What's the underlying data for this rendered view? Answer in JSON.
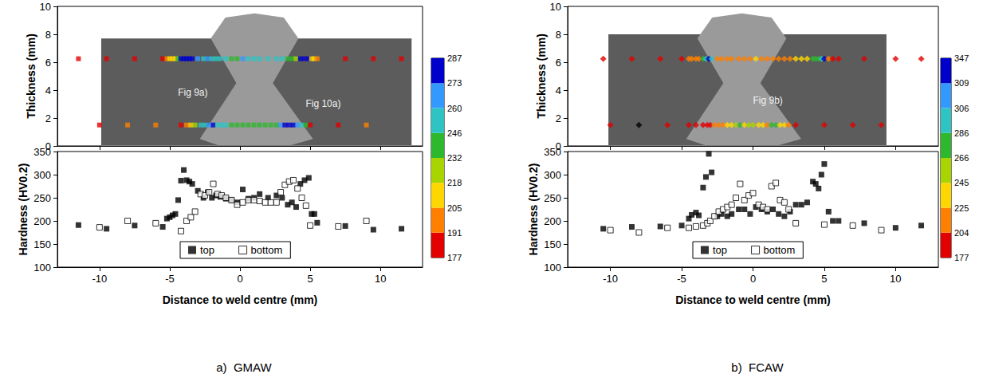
{
  "chart_data": [
    {
      "type": "scatter",
      "title": "a)  GMAW",
      "x_label": "Distance to weld centre (mm)",
      "xlim": [
        -13,
        13
      ],
      "xticks": [
        -10,
        -5,
        0,
        5,
        10
      ],
      "upper": {
        "y_label": "Thickness (mm)",
        "ylim": [
          0,
          10
        ],
        "yticks": [
          0,
          2,
          4,
          6,
          8,
          10
        ],
        "marker": "square",
        "annotations": [
          "Fig 9a)",
          "Fig 10a)"
        ]
      },
      "lower": {
        "y_label": "Hardness (HV0.2)",
        "ylim": [
          100,
          350
        ],
        "yticks": [
          100,
          150,
          200,
          250,
          300,
          350
        ]
      },
      "legend": "bottom",
      "colorbar": {
        "ticks": [
          177,
          191,
          205,
          218,
          232,
          246,
          260,
          273,
          287
        ],
        "colors": [
          "#e30000",
          "#ff8000",
          "#ffd700",
          "#a8d400",
          "#2db82d",
          "#2ec4c4",
          "#3399ff",
          "#0000cc"
        ]
      },
      "series": [
        {
          "name": "top",
          "color": "#000000",
          "marker": "square",
          "thickness": 6.25,
          "x": [
            -11.5,
            -9.5,
            -7.5,
            -5.5,
            -5.2,
            -5.0,
            -4.8,
            -4.6,
            -4.4,
            -4.2,
            -4.0,
            -3.8,
            -3.6,
            -3.4,
            -3.0,
            -2.6,
            -2.3,
            -2.0,
            -1.7,
            -1.4,
            -1.0,
            -0.6,
            -0.2,
            0.2,
            0.6,
            1.0,
            1.4,
            2.0,
            2.6,
            3.0,
            3.4,
            3.7,
            4.0,
            4.3,
            4.6,
            4.9,
            5.1,
            5.3,
            5.5,
            7.5,
            9.5,
            11.5
          ],
          "values": [
            191,
            183,
            190,
            187,
            205,
            208,
            212,
            215,
            245,
            287,
            310,
            288,
            285,
            280,
            265,
            250,
            262,
            250,
            255,
            252,
            248,
            245,
            240,
            268,
            248,
            250,
            258,
            250,
            255,
            250,
            235,
            240,
            230,
            280,
            288,
            293,
            215,
            215,
            196,
            189,
            181,
            183
          ]
        },
        {
          "name": "bottom",
          "color": "#000000",
          "marker": "open_square",
          "thickness": 1.5,
          "x": [
            -10,
            -8,
            -6,
            -4.2,
            -3.8,
            -3.5,
            -3.2,
            -2.8,
            -2.5,
            -2.2,
            -1.9,
            -1.6,
            -1.3,
            -1.0,
            -0.6,
            -0.2,
            0.2,
            0.6,
            1.0,
            1.4,
            1.8,
            2.2,
            2.6,
            2.9,
            3.2,
            3.5,
            3.8,
            4.1,
            4.4,
            4.7,
            5.0,
            7.0,
            9.0
          ],
          "values": [
            186,
            200,
            195,
            178,
            200,
            208,
            220,
            258,
            255,
            262,
            280,
            258,
            255,
            250,
            245,
            235,
            240,
            245,
            245,
            243,
            240,
            240,
            240,
            262,
            278,
            285,
            288,
            270,
            250,
            233,
            190,
            188,
            200
          ]
        }
      ]
    },
    {
      "type": "scatter",
      "title": "b)  FCAW",
      "x_label": "Distance to weld centre (mm)",
      "xlim": [
        -13,
        13
      ],
      "xticks": [
        -10,
        -5,
        0,
        5,
        10
      ],
      "upper": {
        "y_label": "Thickness (mm)",
        "ylim": [
          0,
          10
        ],
        "yticks": [
          0,
          2,
          4,
          6,
          8,
          10
        ],
        "marker": "diamond",
        "annotations": [
          "Fig 9b)"
        ]
      },
      "lower": {
        "y_label": "Hardness (HV0.2)",
        "ylim": [
          100,
          350
        ],
        "yticks": [
          100,
          150,
          200,
          250,
          300,
          350
        ]
      },
      "legend": "bottom",
      "colorbar": {
        "ticks": [
          177,
          204,
          225,
          245,
          266,
          286,
          306,
          309,
          347
        ],
        "colors": [
          "#e30000",
          "#ff8000",
          "#ffd700",
          "#a8d400",
          "#2db82d",
          "#2ec4c4",
          "#3399ff",
          "#0000cc"
        ]
      },
      "series": [
        {
          "name": "top",
          "color": "#000000",
          "marker": "square",
          "thickness": 6.25,
          "x": [
            -10.5,
            -8.5,
            -6.5,
            -5.0,
            -4.5,
            -4.3,
            -4.0,
            -3.8,
            -3.5,
            -3.3,
            -3.1,
            -2.9,
            -2.5,
            -2.2,
            -1.8,
            -1.5,
            -1.0,
            -0.6,
            -0.2,
            0.2,
            0.6,
            1.0,
            1.4,
            1.8,
            2.2,
            2.6,
            3.0,
            3.4,
            3.8,
            4.2,
            4.4,
            4.6,
            4.8,
            5.0,
            5.3,
            5.6,
            6.0,
            7.8,
            10.0,
            11.8
          ],
          "values": [
            183,
            187,
            188,
            190,
            205,
            213,
            218,
            212,
            272,
            295,
            345,
            305,
            210,
            215,
            210,
            215,
            225,
            225,
            215,
            230,
            225,
            220,
            225,
            215,
            210,
            220,
            235,
            235,
            240,
            285,
            280,
            270,
            300,
            323,
            220,
            200,
            200,
            195,
            185,
            190
          ]
        },
        {
          "name": "bottom",
          "color": "#000000",
          "marker": "open_square",
          "thickness": 1.5,
          "x": [
            -10,
            -8,
            -6,
            -4.5,
            -4.0,
            -3.5,
            -3.2,
            -3.0,
            -2.7,
            -2.4,
            -2.1,
            -1.8,
            -1.5,
            -1.2,
            -0.9,
            -0.6,
            -0.3,
            0,
            0.4,
            0.7,
            1.0,
            1.3,
            1.6,
            1.9,
            2.2,
            2.5,
            3.0,
            5.0,
            7.0,
            9.0
          ],
          "values": [
            180,
            175,
            185,
            185,
            188,
            190,
            195,
            200,
            210,
            220,
            225,
            230,
            235,
            250,
            280,
            245,
            255,
            260,
            235,
            230,
            225,
            275,
            282,
            245,
            240,
            225,
            195,
            192,
            190,
            180
          ]
        }
      ]
    }
  ]
}
